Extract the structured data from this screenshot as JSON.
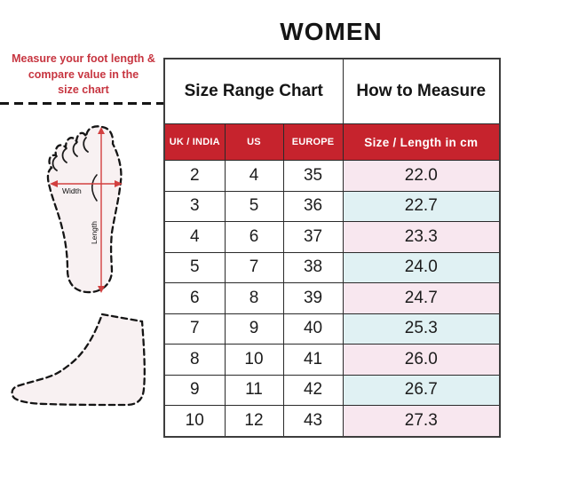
{
  "title": "WOMEN",
  "instruction": {
    "line1": "Measure your foot length &",
    "line2": "compare value in the",
    "line3": "size chart"
  },
  "foot_diagram": {
    "width_label": "Width",
    "length_label": "Length"
  },
  "table": {
    "section_headers": {
      "size_range": "Size Range Chart",
      "how_to_measure": "How to Measure"
    },
    "columns": [
      "UK / INDIA",
      "US",
      "EUROPE",
      "Size / Length in cm"
    ],
    "rows": [
      {
        "uk_india": "2",
        "us": "4",
        "europe": "35",
        "length_cm": "22.0"
      },
      {
        "uk_india": "3",
        "us": "5",
        "europe": "36",
        "length_cm": "22.7"
      },
      {
        "uk_india": "4",
        "us": "6",
        "europe": "37",
        "length_cm": "23.3"
      },
      {
        "uk_india": "5",
        "us": "7",
        "europe": "38",
        "length_cm": "24.0"
      },
      {
        "uk_india": "6",
        "us": "8",
        "europe": "39",
        "length_cm": "24.7"
      },
      {
        "uk_india": "7",
        "us": "9",
        "europe": "40",
        "length_cm": "25.3"
      },
      {
        "uk_india": "8",
        "us": "10",
        "europe": "41",
        "length_cm": "26.0"
      },
      {
        "uk_india": "9",
        "us": "11",
        "europe": "42",
        "length_cm": "26.7"
      },
      {
        "uk_india": "10",
        "us": "12",
        "europe": "43",
        "length_cm": "27.3"
      }
    ]
  },
  "colors": {
    "accent_red": "#c6232d",
    "instruction_text_red": "#c73540",
    "row_pink": "#f8e7ef",
    "row_blue": "#e0f1f3",
    "border_dark": "#2a2a2a",
    "foot_fill": "#f8f1f2",
    "arrow_red": "#d24040"
  }
}
